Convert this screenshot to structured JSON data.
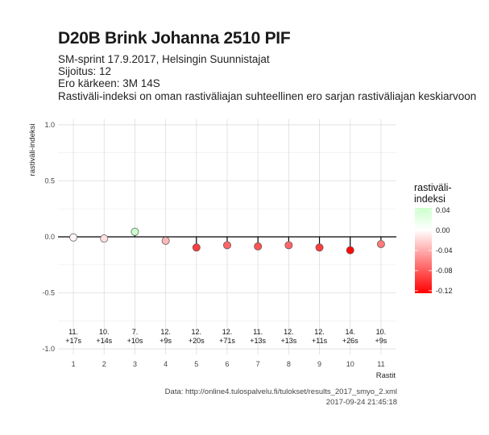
{
  "header": {
    "title": "D20B Brink Johanna 2510 PIF",
    "subtitle_lines": [
      "SM-sprint 17.9.2017, Helsingin Suunnistajat",
      "Sijoitus: 12",
      "Ero kärkeen: 3M 14S",
      "Rastiväli-indeksi on oman rastiväliajan suhteellinen ero sarjan rastiväliajan keskiarvoon"
    ]
  },
  "caption": {
    "source": "Data: http://online4.tulospalvelu.fi/tulokset/results_2017_smyo_2.xml",
    "timestamp": "2017-09-24 21:45:18"
  },
  "chart_data": {
    "type": "scatter",
    "xlabel": "Rastit",
    "ylabel": "rastiväli-indeksi",
    "x": [
      1,
      2,
      3,
      4,
      5,
      6,
      7,
      8,
      9,
      10,
      11
    ],
    "values": [
      -0.005,
      -0.015,
      0.045,
      -0.035,
      -0.095,
      -0.075,
      -0.085,
      -0.075,
      -0.095,
      -0.12,
      -0.065
    ],
    "point_labels": [
      [
        "11.",
        "+17s"
      ],
      [
        "10.",
        "+14s"
      ],
      [
        "7.",
        "+10s"
      ],
      [
        "12.",
        "+9s"
      ],
      [
        "12.",
        "+20s"
      ],
      [
        "12.",
        "+71s"
      ],
      [
        "11.",
        "+13s"
      ],
      [
        "12.",
        "+13s"
      ],
      [
        "12.",
        "+11s"
      ],
      [
        "14.",
        "+26s"
      ],
      [
        "10.",
        "+9s"
      ]
    ],
    "xlim": [
      0.5,
      11.5
    ],
    "ylim": [
      -1.0,
      1.0
    ],
    "y_ticks": [
      "1.0",
      "0.5",
      "0.0",
      "-0.5",
      "-1.0"
    ],
    "y_tick_values": [
      1.0,
      0.5,
      0.0,
      -0.5,
      -1.0
    ],
    "x_ticks": [
      "1",
      "2",
      "3",
      "4",
      "5",
      "6",
      "7",
      "8",
      "9",
      "10",
      "11"
    ],
    "grid": true,
    "reference_line": 0,
    "legend": {
      "title_lines": [
        "rastiväli-",
        "indeksi"
      ],
      "position": "right",
      "ticks": [
        "0.04",
        "0.00",
        "-0.04",
        "-0.08",
        "-0.12"
      ],
      "tick_values": [
        0.04,
        0.0,
        -0.04,
        -0.08,
        -0.12
      ],
      "range": [
        -0.125,
        0.045
      ]
    },
    "colors": {
      "low": "#ff0000",
      "mid": "#ffffff",
      "high": "#ccffcc",
      "line": "#000000",
      "point_border": "#555555"
    }
  }
}
